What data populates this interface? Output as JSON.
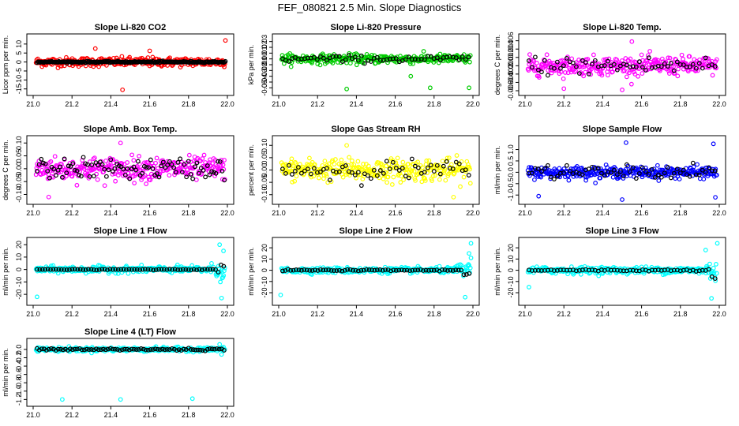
{
  "figure_title": "FEF_080821  2.5 Min. Slope Diagnostics",
  "colors": {
    "co2": "#ff0000",
    "pressure": "#00cc00",
    "temp": "#ff00ff",
    "amb_temp": "#ff00ff",
    "rh": "#ffff00",
    "sample_flow": "#0000ff",
    "line_flow": "#00ffff",
    "overlay": "#000000"
  },
  "chart_data": [
    {
      "type": "scatter",
      "title": "Slope Li-820 CO2",
      "xlabel": "",
      "ylabel": "Licor ppm per min.",
      "xlim": [
        21.0,
        22.0
      ],
      "ylim": [
        -16,
        13
      ],
      "xticks": [
        "21.0",
        "21.2",
        "21.4",
        "21.6",
        "21.8",
        "22.0"
      ],
      "yticks": [
        "-15",
        "-10",
        "-5",
        "0",
        "5",
        "10"
      ],
      "ytick_values": [
        -15,
        -10,
        -5,
        0,
        5,
        10
      ],
      "color_key": "co2",
      "spread": 2.5,
      "overlay_spread": 0.4,
      "outliers": [
        [
          21.99,
          12.0
        ],
        [
          21.46,
          -15.5
        ],
        [
          21.32,
          7.5
        ],
        [
          21.6,
          6.2
        ]
      ],
      "series": [
        {
          "name": "slope",
          "n": 320
        },
        {
          "name": "overlay",
          "n": 190
        }
      ]
    },
    {
      "type": "scatter",
      "title": "Slope Li-820 Pressure",
      "xlabel": "",
      "ylabel": "kPa per min.",
      "xlim": [
        21.0,
        22.0
      ],
      "ylim": [
        -0.055,
        0.035
      ],
      "xticks": [
        "21.0",
        "21.2",
        "21.4",
        "21.6",
        "21.8",
        "22.0"
      ],
      "yticks": [
        "-0.05",
        "-0.04",
        "-0.03",
        "-0.02",
        "-0.01",
        "0.00",
        "0.01",
        "0.02",
        "0.03"
      ],
      "ytick_values": [
        -0.05,
        -0.04,
        -0.03,
        -0.02,
        -0.01,
        0.0,
        0.01,
        0.02,
        0.03
      ],
      "color_key": "pressure",
      "spread": 0.008,
      "overlay_spread": 0.006,
      "outliers": [
        [
          21.35,
          -0.052
        ],
        [
          21.78,
          -0.05
        ],
        [
          21.98,
          -0.05
        ],
        [
          21.68,
          -0.03
        ]
      ],
      "series": [
        {
          "name": "slope",
          "n": 300
        },
        {
          "name": "overlay",
          "n": 60
        }
      ]
    },
    {
      "type": "scatter",
      "title": "Slope Li-820 Temp.",
      "xlabel": "",
      "ylabel": "degrees C per min.",
      "xlim": [
        21.0,
        22.0
      ],
      "ylim": [
        -0.006,
        0.0065
      ],
      "xticks": [
        "21.0",
        "21.2",
        "21.4",
        "21.6",
        "21.8",
        "22.0"
      ],
      "yticks": [
        "-0.006",
        "-0.004",
        "-0.002",
        "0.000",
        "0.002",
        "0.004",
        "0.006"
      ],
      "ytick_values": [
        -0.006,
        -0.004,
        -0.002,
        0.0,
        0.002,
        0.004,
        0.006
      ],
      "color_key": "temp",
      "spread": 0.0022,
      "overlay_spread": 0.0022,
      "outliers": [
        [
          21.55,
          0.0058
        ],
        [
          21.5,
          -0.0058
        ],
        [
          21.2,
          -0.0055
        ]
      ],
      "series": [
        {
          "name": "slope",
          "n": 320
        },
        {
          "name": "overlay",
          "n": 60
        }
      ]
    },
    {
      "type": "scatter",
      "title": "Slope Amb. Box Temp.",
      "xlabel": "",
      "ylabel": "degrees C per min.",
      "xlim": [
        21.0,
        22.0
      ],
      "ylim": [
        -0.12,
        0.11
      ],
      "xticks": [
        "21.0",
        "21.2",
        "21.4",
        "21.6",
        "21.8",
        "22.0"
      ],
      "yticks": [
        "-0.10",
        "-0.05",
        "0.00",
        "0.05",
        "0.10"
      ],
      "ytick_values": [
        -0.1,
        -0.05,
        0.0,
        0.05,
        0.1
      ],
      "color_key": "amb_temp",
      "spread": 0.045,
      "overlay_spread": 0.04,
      "outliers": [
        [
          21.45,
          0.1
        ],
        [
          21.08,
          -0.11
        ]
      ],
      "series": [
        {
          "name": "slope",
          "n": 320
        },
        {
          "name": "overlay",
          "n": 90
        }
      ]
    },
    {
      "type": "scatter",
      "title": "Slope Gas Stream RH",
      "xlabel": "",
      "ylabel": "percent per min.",
      "xlim": [
        21.0,
        22.0
      ],
      "ylim": [
        -0.12,
        0.12
      ],
      "xticks": [
        "21.0",
        "21.2",
        "21.4",
        "21.6",
        "21.8",
        "22.0"
      ],
      "yticks": [
        "-0.10",
        "-0.05",
        "0.00",
        "0.05",
        "0.10"
      ],
      "ytick_values": [
        -0.1,
        -0.05,
        0.0,
        0.05,
        0.1
      ],
      "color_key": "rh",
      "spread": 0.045,
      "overlay_spread": 0.04,
      "outliers": [
        [
          21.35,
          0.1
        ],
        [
          21.9,
          -0.11
        ]
      ],
      "series": [
        {
          "name": "slope",
          "n": 320
        },
        {
          "name": "overlay",
          "n": 60
        }
      ]
    },
    {
      "type": "scatter",
      "title": "Slope Sample Flow",
      "xlabel": "",
      "ylabel": "ml/min per min.",
      "xlim": [
        21.0,
        22.0
      ],
      "ylim": [
        -1.2,
        1.4
      ],
      "xticks": [
        "21.0",
        "21.2",
        "21.4",
        "21.6",
        "21.8",
        "22.0"
      ],
      "yticks": [
        "-1.0",
        "-0.5",
        "0.0",
        "0.5",
        "1.0"
      ],
      "ytick_values": [
        -1.0,
        -0.5,
        0.0,
        0.5,
        1.0
      ],
      "color_key": "sample_flow",
      "spread": 0.25,
      "overlay_spread": 0.3,
      "outliers": [
        [
          21.52,
          1.3
        ],
        [
          21.07,
          -1.05
        ],
        [
          21.98,
          -1.1
        ],
        [
          21.97,
          1.25
        ],
        [
          21.5,
          -1.2
        ]
      ],
      "series": [
        {
          "name": "slope",
          "n": 320
        },
        {
          "name": "overlay",
          "n": 60
        }
      ]
    },
    {
      "type": "scatter",
      "title": "Slope Line 1 Flow",
      "xlabel": "",
      "ylabel": "ml/min per min.",
      "xlim": [
        21.0,
        22.0
      ],
      "ylim": [
        -25,
        22
      ],
      "xticks": [
        "21.0",
        "21.2",
        "21.4",
        "21.6",
        "21.8",
        "22.0"
      ],
      "yticks": [
        "-20",
        "-10",
        "0",
        "10",
        "20"
      ],
      "ytick_values": [
        -20,
        -10,
        0,
        10,
        20
      ],
      "color_key": "line_flow",
      "spread": 2.5,
      "overlay_spread": 0.3,
      "tail_spread": 20,
      "outliers": [
        [
          21.02,
          -22
        ],
        [
          21.96,
          20
        ],
        [
          21.97,
          -23
        ],
        [
          21.98,
          15
        ]
      ],
      "series": [
        {
          "name": "slope",
          "n": 300
        },
        {
          "name": "overlay",
          "n": 70
        }
      ]
    },
    {
      "type": "scatter",
      "title": "Slope Line 2 Flow",
      "xlabel": "",
      "ylabel": "ml/min per min.",
      "xlim": [
        21.0,
        22.0
      ],
      "ylim": [
        -27,
        25
      ],
      "xticks": [
        "21.0",
        "21.2",
        "21.4",
        "21.6",
        "21.8",
        "22.0"
      ],
      "yticks": [
        "-20",
        "-10",
        "0",
        "10",
        "20"
      ],
      "ytick_values": [
        -20,
        -10,
        0,
        10,
        20
      ],
      "color_key": "line_flow",
      "spread": 2.5,
      "overlay_spread": 0.6,
      "tail_spread": 20,
      "outliers": [
        [
          21.01,
          -22
        ],
        [
          21.99,
          24
        ],
        [
          21.98,
          15
        ],
        [
          21.99,
          11
        ],
        [
          21.96,
          -24
        ]
      ],
      "series": [
        {
          "name": "slope",
          "n": 300
        },
        {
          "name": "overlay",
          "n": 70
        }
      ]
    },
    {
      "type": "scatter",
      "title": "Slope Line 3 Flow",
      "xlabel": "",
      "ylabel": "ml/min per min.",
      "xlim": [
        21.0,
        22.0
      ],
      "ylim": [
        -27,
        25
      ],
      "xticks": [
        "21.0",
        "21.2",
        "21.4",
        "21.6",
        "21.8",
        "22.0"
      ],
      "yticks": [
        "-20",
        "-10",
        "0",
        "10",
        "20"
      ],
      "ytick_values": [
        -20,
        -10,
        0,
        10,
        20
      ],
      "color_key": "line_flow",
      "spread": 3.0,
      "overlay_spread": 0.8,
      "tail_spread": 20,
      "outliers": [
        [
          21.99,
          24
        ],
        [
          21.96,
          -25
        ],
        [
          21.93,
          18
        ],
        [
          21.02,
          -15
        ]
      ],
      "series": [
        {
          "name": "slope",
          "n": 300
        },
        {
          "name": "overlay",
          "n": 60
        }
      ]
    },
    {
      "type": "scatter",
      "title": "Slope Line 4 (LT) Flow",
      "xlabel": "",
      "ylabel": "ml/min per min.",
      "xlim": [
        21.0,
        22.0
      ],
      "ylim": [
        -1.25,
        0.15
      ],
      "xticks": [
        "21.0",
        "21.2",
        "21.4",
        "21.6",
        "21.8",
        "22.0"
      ],
      "yticks": [
        "-1.2",
        "-1.0",
        "-0.8",
        "-0.6",
        "-0.4",
        "-0.2",
        "0.0"
      ],
      "ytick_values": [
        -1.2,
        -1.0,
        -0.8,
        -0.6,
        -0.4,
        -0.2,
        0.0
      ],
      "color_key": "line_flow",
      "spread": 0.05,
      "overlay_spread": 0.03,
      "outliers": [
        [
          21.15,
          -1.2
        ],
        [
          21.45,
          -1.2
        ],
        [
          21.82,
          -1.18
        ],
        [
          21.96,
          0.12
        ],
        [
          21.97,
          -0.12
        ]
      ],
      "series": [
        {
          "name": "slope",
          "n": 300
        },
        {
          "name": "overlay",
          "n": 80
        }
      ]
    }
  ]
}
